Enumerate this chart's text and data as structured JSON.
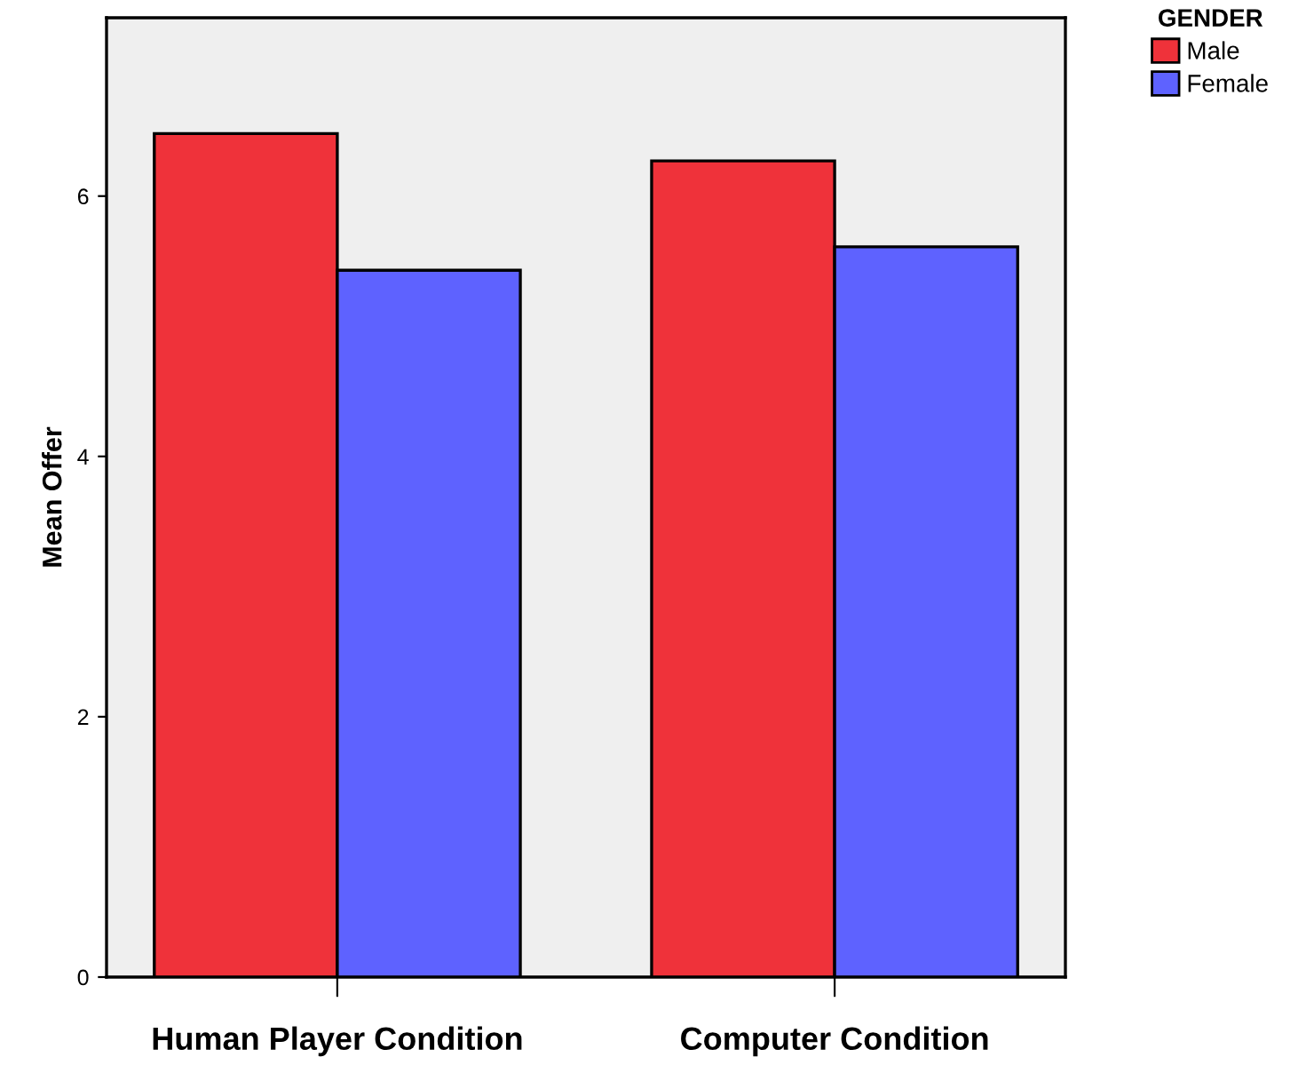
{
  "chart_data": {
    "type": "bar",
    "ylabel": "Mean Offer",
    "legend_title": "GENDER",
    "categories": [
      "Human Player Condition",
      "Computer Condition"
    ],
    "series": [
      {
        "name": "Male",
        "color": "#ef323a",
        "values": [
          6.48,
          6.27
        ]
      },
      {
        "name": "Female",
        "color": "#5e62ff",
        "values": [
          5.43,
          5.61
        ]
      }
    ],
    "ylim": [
      0,
      7.37
    ],
    "yticks": [
      0,
      2,
      4,
      6
    ],
    "grid": false,
    "legend": "top right"
  }
}
